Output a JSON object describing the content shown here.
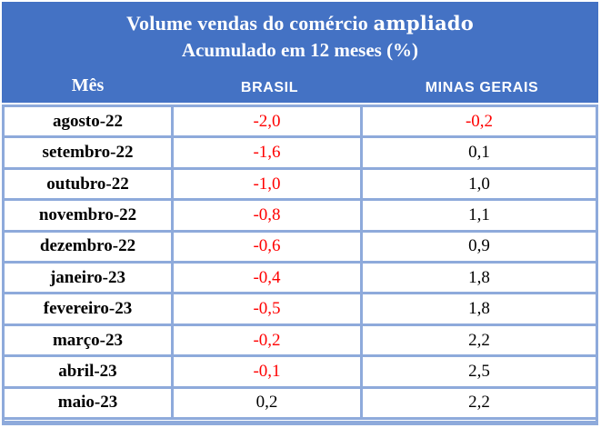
{
  "chart_data": {
    "type": "table",
    "title": "Volume vendas do comércio ampliado",
    "subtitle": "Acumulado em 12 meses (%)",
    "columns": [
      "Mês",
      "BRASIL",
      "MINAS GERAIS"
    ],
    "rows": [
      {
        "month": "agosto-22",
        "brasil": "-2,0",
        "minas_gerais": "-0,2"
      },
      {
        "month": "setembro-22",
        "brasil": "-1,6",
        "minas_gerais": "0,1"
      },
      {
        "month": "outubro-22",
        "brasil": "-1,0",
        "minas_gerais": "1,0"
      },
      {
        "month": "novembro-22",
        "brasil": "-0,8",
        "minas_gerais": "1,1"
      },
      {
        "month": "dezembro-22",
        "brasil": "-0,6",
        "minas_gerais": "0,9"
      },
      {
        "month": "janeiro-23",
        "brasil": "-0,4",
        "minas_gerais": "1,8"
      },
      {
        "month": "fevereiro-23",
        "brasil": "-0,5",
        "minas_gerais": "1,8"
      },
      {
        "month": "março-23",
        "brasil": "-0,2",
        "minas_gerais": "2,2"
      },
      {
        "month": "abril-23",
        "brasil": "-0,1",
        "minas_gerais": "2,5"
      },
      {
        "month": "maio-23",
        "brasil": "0,2",
        "minas_gerais": "2,2"
      }
    ],
    "value_format": "decimal comma, one decimal place",
    "style_note": "negative values rendered in red"
  },
  "header": {
    "title_main": "Volume vendas do comércio",
    "title_emphasis": "ampliado",
    "subtitle": "Acumulado em 12 meses (%)"
  },
  "colors": {
    "header_bg": "#4472C4",
    "border": "#8EAADB",
    "header_text": "#FFFFFF",
    "negative_value": "#FF0000",
    "positive_value": "#000000"
  }
}
